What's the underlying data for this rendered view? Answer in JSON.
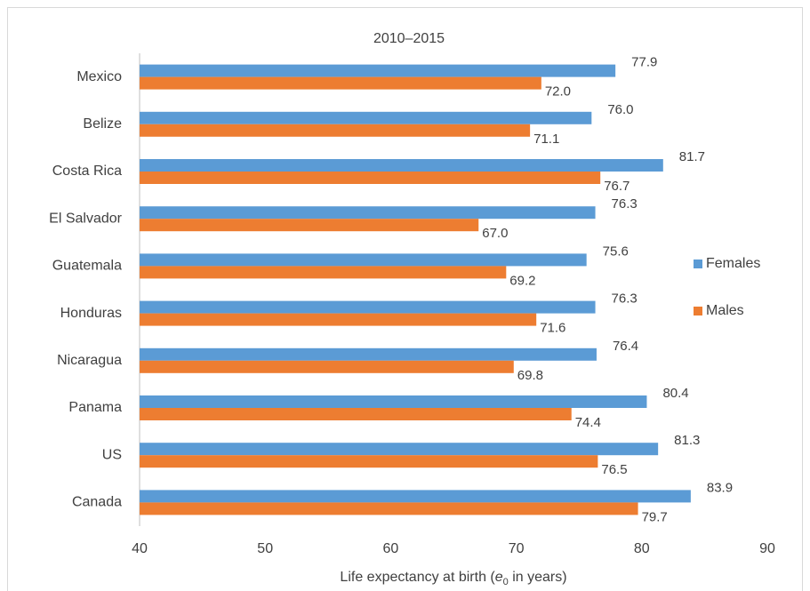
{
  "chart_data": {
    "type": "hbar",
    "title": "2010–2015",
    "xlabel": {
      "before": "Life expectancy at birth (",
      "var": "e",
      "sub": "0",
      "after": " in years)"
    },
    "categories": [
      "Mexico",
      "Belize",
      "Costa Rica",
      "El Salvador",
      "Guatemala",
      "Honduras",
      "Nicaragua",
      "Panama",
      "US",
      "Canada"
    ],
    "series": [
      {
        "name": "Females",
        "color": "#5b9bd5",
        "values": [
          77.9,
          76.0,
          81.7,
          76.3,
          75.6,
          76.3,
          76.4,
          80.4,
          81.3,
          83.9
        ],
        "value_labels": [
          "77.9",
          "76.0",
          "81.7",
          "76.3",
          "75.6",
          "76.3",
          "76.4",
          "80.4",
          "81.3",
          "83.9"
        ]
      },
      {
        "name": "Males",
        "color": "#ed7d31",
        "values": [
          72.0,
          71.1,
          76.7,
          67.0,
          69.2,
          71.6,
          69.8,
          74.4,
          76.5,
          79.7
        ],
        "value_labels": [
          "72.0",
          "71.1",
          "76.7",
          "67.0",
          "69.2",
          "71.6",
          "69.8",
          "74.4",
          "76.5",
          "79.7"
        ]
      }
    ],
    "xlim": [
      40,
      90
    ],
    "xticks": [
      40,
      50,
      60,
      70,
      80,
      90
    ],
    "grid": false,
    "legend": "right"
  }
}
